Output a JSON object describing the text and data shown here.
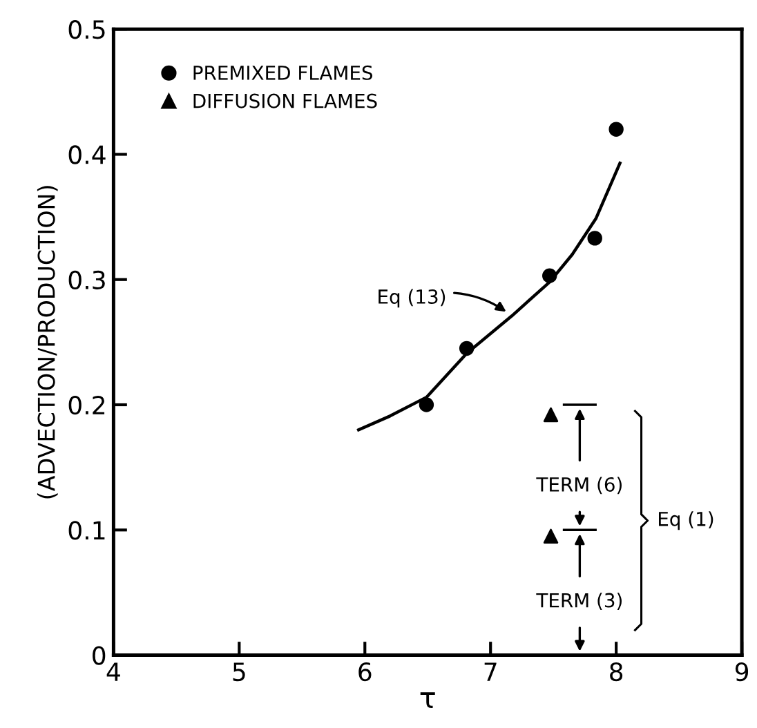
{
  "chart_data": {
    "type": "scatter",
    "xlabel": "τ",
    "ylabel": "(ADVECTION/PRODUCTION)",
    "xlim": [
      4,
      9
    ],
    "ylim": [
      0,
      0.5
    ],
    "xticks": [
      4,
      5,
      6,
      7,
      8,
      9
    ],
    "yticks": [
      0,
      0.1,
      0.2,
      0.3,
      0.4,
      0.5
    ],
    "grid": false,
    "legend": "top left",
    "series": [
      {
        "name": "PREMIXED FLAMES",
        "color": "#000000",
        "marker": "circle",
        "x": [
          6.49,
          6.81,
          7.47,
          7.83,
          8.0
        ],
        "values": [
          0.2,
          0.245,
          0.303,
          0.333,
          0.42
        ]
      },
      {
        "name": "DIFFUSION FLAMES",
        "color": "#000000",
        "marker": "triangle",
        "x": [
          7.48,
          7.48
        ],
        "values": [
          0.192,
          0.095
        ]
      },
      {
        "type": "line",
        "color": "#000000",
        "marker": "none",
        "x": [
          5.95,
          6.2,
          6.49,
          6.81,
          7.17,
          7.47,
          7.65,
          7.84,
          8.03
        ],
        "values": [
          0.18,
          0.191,
          0.206,
          0.241,
          0.271,
          0.298,
          0.32,
          0.349,
          0.393
        ]
      }
    ],
    "annotations": [
      "Eq (13)",
      "TERM (6)",
      "TERM (3)",
      "Eq (1)"
    ]
  }
}
